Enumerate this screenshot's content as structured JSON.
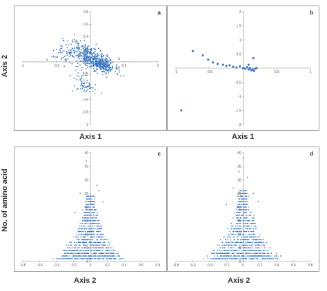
{
  "labels": {
    "axis2_top": "Axis 2",
    "axis1_a": "Axis 1",
    "axis1_b": "Axis 1",
    "amino": "No. of amino acid",
    "axis2_c": "Axis 2",
    "axis2_d": "Axis 2"
  },
  "colors": {
    "points": "#3f78c4",
    "axis": "#8a8a8a"
  },
  "chart_data": [
    {
      "type": "scatter",
      "panel_label": "a",
      "xlim": [
        -1,
        1
      ],
      "ylim": [
        -1,
        0.8
      ],
      "xticks": [
        "-1",
        "-0.5",
        "0.5",
        "1"
      ],
      "xtick_values": [
        -1,
        -0.5,
        0.5,
        1
      ],
      "yticks": [
        "0.8",
        "0.6",
        "0.4",
        "0.2",
        "-0.2",
        "-0.4",
        "-0.6",
        "-0.8",
        "-1"
      ],
      "ytick_values": [
        0.8,
        0.6,
        0.4,
        0.2,
        -0.2,
        -0.4,
        -0.6,
        -0.8,
        -1
      ],
      "clusters": [
        {
          "cx": 0.05,
          "cy": 0.05,
          "sx": 0.16,
          "sy": 0.09,
          "n": 380,
          "slope": -0.45
        },
        {
          "cx": 0.15,
          "cy": -0.03,
          "sx": 0.1,
          "sy": 0.05,
          "n": 160,
          "slope": -0.3
        },
        {
          "cx": -0.3,
          "cy": 0.15,
          "sx": 0.12,
          "sy": 0.1,
          "n": 90,
          "slope": 0
        },
        {
          "cx": -0.15,
          "cy": -0.3,
          "sx": 0.06,
          "sy": 0.1,
          "n": 40,
          "slope": 0
        },
        {
          "cx": -0.02,
          "cy": -0.42,
          "sx": 0.04,
          "sy": 0.05,
          "n": 20,
          "slope": 0
        }
      ],
      "seed": 11
    },
    {
      "type": "scatter",
      "panel_label": "b",
      "xlim": [
        -1,
        1
      ],
      "ylim": [
        -2,
        2
      ],
      "xticks": [
        "-1",
        "-0.5",
        "0.5",
        "1"
      ],
      "xtick_values": [
        -1,
        -0.5,
        0.5,
        1
      ],
      "yticks": [
        "2",
        "1.5",
        "1",
        "0.5",
        "-0.5",
        "-1",
        "-1.5",
        "-2"
      ],
      "ytick_values": [
        2,
        1.5,
        1,
        0.5,
        -0.5,
        -1,
        -1.5,
        -2
      ],
      "points": [
        [
          -0.75,
          0.6
        ],
        [
          -0.6,
          0.45
        ],
        [
          -0.52,
          0.3
        ],
        [
          -0.45,
          0.2
        ],
        [
          -0.38,
          0.15
        ],
        [
          -0.3,
          0.12
        ],
        [
          -0.25,
          0.08
        ],
        [
          -0.2,
          0.1
        ],
        [
          -0.15,
          0.05
        ],
        [
          -0.1,
          0.02
        ],
        [
          -0.05,
          0.06
        ],
        [
          0.0,
          0.0
        ],
        [
          0.03,
          -0.02
        ],
        [
          0.06,
          0.03
        ],
        [
          0.08,
          -0.05
        ],
        [
          0.1,
          0.0
        ],
        [
          0.12,
          -0.08
        ],
        [
          0.14,
          -0.04
        ],
        [
          0.16,
          -0.1
        ],
        [
          0.18,
          -0.02
        ],
        [
          0.2,
          0.0
        ],
        [
          0.08,
          0.12
        ],
        [
          0.15,
          0.35
        ],
        [
          -0.92,
          -1.5
        ]
      ]
    },
    {
      "type": "scatter",
      "panel_label": "c",
      "xlim": [
        -0.8,
        0.8
      ],
      "ylim": [
        0,
        40
      ],
      "xticks": [
        "-0.8",
        "-0.6",
        "-0.4",
        "-0.2",
        "0",
        "0.2",
        "0.4",
        "0.6",
        "0.8"
      ],
      "xtick_values": [
        -0.8,
        -0.6,
        -0.4,
        -0.2,
        0,
        0.2,
        0.4,
        0.6,
        0.8
      ],
      "yticks": [
        "40",
        "35",
        "30",
        "25",
        "20",
        "15",
        "10",
        "5",
        "0"
      ],
      "ytick_values": [
        40,
        35,
        30,
        25,
        20,
        15,
        10,
        5,
        0
      ],
      "pyramid": {
        "spread0": 0.45,
        "spread_top": 0.04,
        "decay": 0.09,
        "rows": 24,
        "seed": 7,
        "extra_x": 0.58
      },
      "outliers": [
        [
          -0.05,
          37
        ],
        [
          0.08,
          28
        ],
        [
          -0.12,
          25
        ],
        [
          0.1,
          26
        ],
        [
          0.15,
          22
        ],
        [
          -0.18,
          18
        ]
      ]
    },
    {
      "type": "scatter",
      "panel_label": "d",
      "xlim": [
        -0.8,
        0.8
      ],
      "ylim": [
        0,
        40
      ],
      "xticks": [
        "-0.8",
        "-0.6",
        "-0.4",
        "-0.2",
        "0",
        "0.2",
        "0.4",
        "0.6",
        "0.8"
      ],
      "xtick_values": [
        -0.8,
        -0.6,
        -0.4,
        -0.2,
        0,
        0.2,
        0.4,
        0.6,
        0.8
      ],
      "yticks": [
        "40",
        "35",
        "30",
        "25",
        "20",
        "15",
        "10",
        "5",
        "0"
      ],
      "ytick_values": [
        40,
        35,
        30,
        25,
        20,
        15,
        10,
        5,
        0
      ],
      "pyramid": {
        "spread0": 0.5,
        "spread_top": 0.05,
        "decay": 0.085,
        "rows": 26,
        "seed": 19,
        "extra_x": 0.65
      },
      "outliers": [
        [
          0.0,
          38
        ],
        [
          -0.05,
          33
        ],
        [
          0.05,
          31
        ],
        [
          -0.12,
          27
        ],
        [
          0.12,
          25
        ],
        [
          0.18,
          22
        ],
        [
          -0.2,
          21
        ]
      ]
    }
  ]
}
